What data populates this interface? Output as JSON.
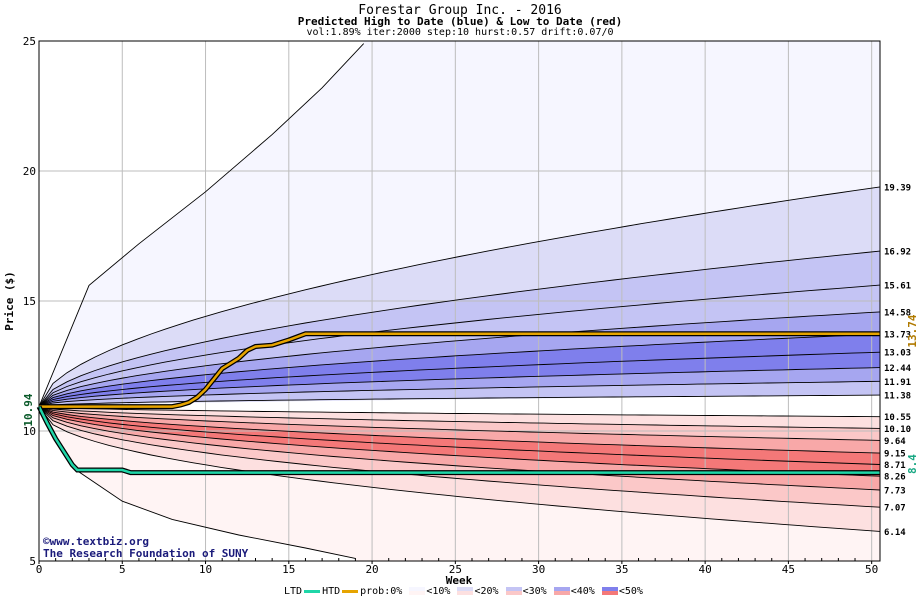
{
  "chart_data": {
    "type": "area",
    "title": "Forestar Group Inc. - 2016",
    "subtitle": "Predicted High to Date (blue) &  Low to Date (red)",
    "params": "vol:1.89% iter:2000 step:10 hurst:0.57 drift:0.07/0",
    "xlabel": "Week",
    "ylabel": "Price ($)",
    "xlim": [
      0,
      50.5
    ],
    "ylim": [
      5,
      25
    ],
    "x_ticks": [
      0,
      5,
      10,
      15,
      20,
      25,
      30,
      35,
      40,
      45,
      50
    ],
    "y_ticks": [
      5,
      10,
      15,
      20,
      25
    ],
    "grid": true,
    "start_value": 10.94,
    "start_label": "10.94",
    "upper_bands_end": [
      19.39,
      16.92,
      15.61,
      14.58,
      13.73,
      13.03,
      12.44,
      11.91,
      11.38
    ],
    "upper_labels": [
      "19.39",
      "16.92",
      "15.61",
      "14.58",
      "13.73",
      "13.03",
      "12.44",
      "11.91",
      "11.38"
    ],
    "lower_bands_end": [
      10.55,
      10.1,
      9.64,
      9.15,
      8.71,
      8.26,
      7.73,
      7.07,
      6.14
    ],
    "lower_labels": [
      "10.55",
      "10.10",
      "9.64",
      "9.15",
      "8.71",
      "8.26",
      "7.73",
      "7.07",
      "6.14"
    ],
    "outer_upper_curve": [
      [
        0,
        10.94
      ],
      [
        3,
        15.6
      ],
      [
        6,
        17.2
      ],
      [
        10,
        19.2
      ],
      [
        14,
        21.4
      ],
      [
        17,
        23.2
      ],
      [
        19.5,
        24.9
      ]
    ],
    "outer_lower_curve": [
      [
        0,
        10.94
      ],
      [
        2,
        8.6
      ],
      [
        5,
        7.3
      ],
      [
        8,
        6.6
      ],
      [
        12,
        6.0
      ],
      [
        16,
        5.5
      ],
      [
        19,
        5.1
      ]
    ],
    "series": [
      {
        "name": "HTD",
        "color": "#e6a400",
        "points": [
          [
            0,
            10.94
          ],
          [
            8,
            10.94
          ],
          [
            8.5,
            11.0
          ],
          [
            9,
            11.1
          ],
          [
            9.5,
            11.3
          ],
          [
            10,
            11.6
          ],
          [
            10.5,
            12.0
          ],
          [
            11,
            12.4
          ],
          [
            12,
            12.8
          ],
          [
            12.5,
            13.1
          ],
          [
            13,
            13.25
          ],
          [
            14,
            13.3
          ],
          [
            15,
            13.5
          ],
          [
            16,
            13.74
          ],
          [
            50.5,
            13.74
          ]
        ],
        "end_label": "13.74"
      },
      {
        "name": "LTD",
        "color": "#1fd6a8",
        "points": [
          [
            0,
            10.94
          ],
          [
            0.5,
            10.3
          ],
          [
            1,
            9.7
          ],
          [
            1.5,
            9.2
          ],
          [
            2,
            8.7
          ],
          [
            2.3,
            8.5
          ],
          [
            5,
            8.5
          ],
          [
            5.5,
            8.4
          ],
          [
            50.5,
            8.4
          ]
        ],
        "end_label": "8.4"
      }
    ],
    "legend": {
      "placement": "bottom",
      "ltd_label": "LTD",
      "htd_label": "HTD",
      "prob_label": "prob:0%",
      "items": [
        {
          "label": "<10%",
          "color": "#f6f6ff",
          "color2": "#fff4f4"
        },
        {
          "label": "<20%",
          "color": "#dcdcf7",
          "color2": "#fde0e0"
        },
        {
          "label": "<30%",
          "color": "#c4c4f4",
          "color2": "#fbc8c8"
        },
        {
          "label": "<40%",
          "color": "#a6a6f0",
          "color2": "#f8a8a8"
        },
        {
          "label": "<50%",
          "color": "#7f7fec",
          "color2": "#f47878"
        }
      ]
    }
  },
  "watermark": {
    "line1": "©www.textbiz.org",
    "line2": "The Research Foundation of SUNY"
  }
}
